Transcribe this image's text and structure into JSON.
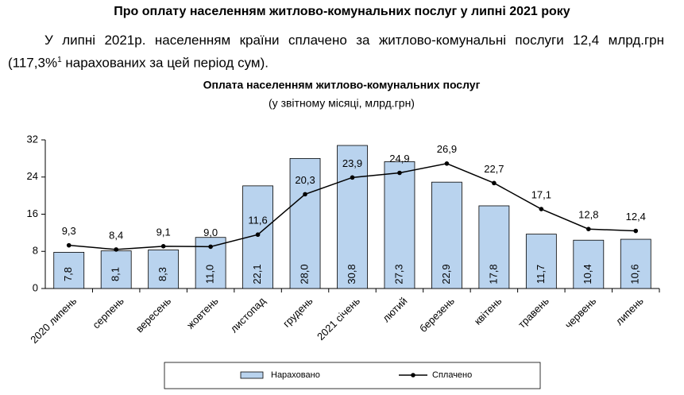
{
  "document": {
    "title": "Про оплату населенням житлово-комунальних послуг у липні 2021 року",
    "paragraph": [
      "У липні 2021р. населенням країни сплачено за житлово-комунальні послуги 12,4 млрд.грн (117,3%",
      "1",
      " нарахованих за цей період сум)."
    ]
  },
  "chart_data": {
    "type": "combo",
    "title": "Оплата населенням житлово-комунальних послуг",
    "subtitle": "(у звітному місяці, млрд.грн)",
    "categories": [
      "2020 липень",
      "серпень",
      "вересень",
      "жовтень",
      "листопад",
      "грудень",
      "2021 січень",
      "лютий",
      "березень",
      "квітень",
      "травень",
      "червень",
      "липень"
    ],
    "series": [
      {
        "name": "Нараховано",
        "type": "bar",
        "color": "#b9d3ee",
        "values": [
          7.8,
          8.1,
          8.3,
          11.0,
          22.1,
          28.0,
          30.8,
          27.3,
          22.9,
          17.8,
          11.7,
          10.4,
          10.6
        ],
        "value_labels": [
          "7,8",
          "8,1",
          "8,3",
          "11,0",
          "22,1",
          "28,0",
          "30,8",
          "27,3",
          "22,9",
          "17,8",
          "11,7",
          "10,4",
          "10,6"
        ]
      },
      {
        "name": "Сплачено",
        "type": "line",
        "color": "#000000",
        "values": [
          9.3,
          8.4,
          9.1,
          9.0,
          11.6,
          20.3,
          23.9,
          24.9,
          26.9,
          22.7,
          17.1,
          12.8,
          12.4
        ],
        "value_labels": [
          "9,3",
          "8,4",
          "9,1",
          "9,0",
          "11,6",
          "20,3",
          "23,9",
          "24,9",
          "26,9",
          "22,7",
          "17,1",
          "12,8",
          "12,4"
        ]
      }
    ],
    "ylim": [
      0,
      32
    ],
    "yticks": [
      0,
      8,
      16,
      24,
      32
    ],
    "legend": "bottom"
  }
}
